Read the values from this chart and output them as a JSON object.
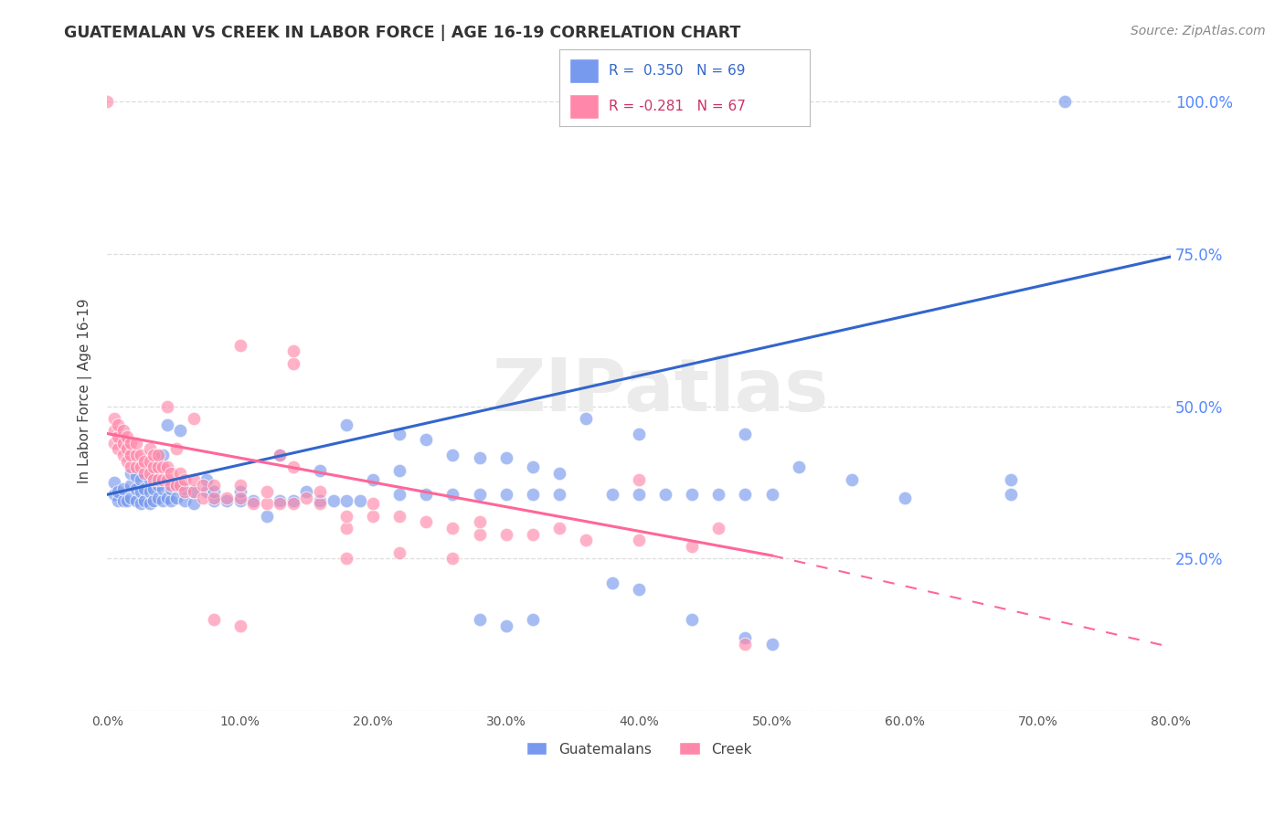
{
  "title": "GUATEMALAN VS CREEK IN LABOR FORCE | AGE 16-19 CORRELATION CHART",
  "source": "Source: ZipAtlas.com",
  "ylabel": "In Labor Force | Age 16-19",
  "xmin": 0.0,
  "xmax": 0.8,
  "ymin": 0.0,
  "ymax": 1.05,
  "ytick_vals": [
    0.0,
    0.25,
    0.5,
    0.75,
    1.0
  ],
  "ytick_labels": [
    "",
    "25.0%",
    "50.0%",
    "75.0%",
    "100.0%"
  ],
  "xtick_vals": [
    0.0,
    0.1,
    0.2,
    0.3,
    0.4,
    0.5,
    0.6,
    0.7,
    0.8
  ],
  "xtick_labels": [
    "0.0%",
    "10.0%",
    "20.0%",
    "30.0%",
    "40.0%",
    "50.0%",
    "60.0%",
    "70.0%",
    "80.0%"
  ],
  "watermark": "ZIPatlas",
  "blue_color": "#7799EE",
  "pink_color": "#FF88AA",
  "blue_line_color": "#3366CC",
  "pink_line_color": "#FF6699",
  "blue_trend": [
    0.0,
    0.8,
    0.355,
    0.745
  ],
  "pink_trend_solid": [
    0.0,
    0.5,
    0.455,
    0.255
  ],
  "pink_trend_dash": [
    0.5,
    0.8,
    0.255,
    0.105
  ],
  "guatemalan_points": [
    [
      0.005,
      0.355
    ],
    [
      0.005,
      0.375
    ],
    [
      0.008,
      0.345
    ],
    [
      0.008,
      0.36
    ],
    [
      0.012,
      0.345
    ],
    [
      0.012,
      0.365
    ],
    [
      0.015,
      0.345
    ],
    [
      0.018,
      0.35
    ],
    [
      0.018,
      0.37
    ],
    [
      0.018,
      0.39
    ],
    [
      0.022,
      0.345
    ],
    [
      0.022,
      0.365
    ],
    [
      0.022,
      0.385
    ],
    [
      0.025,
      0.34
    ],
    [
      0.025,
      0.36
    ],
    [
      0.025,
      0.38
    ],
    [
      0.028,
      0.345
    ],
    [
      0.028,
      0.365
    ],
    [
      0.032,
      0.34
    ],
    [
      0.032,
      0.36
    ],
    [
      0.032,
      0.38
    ],
    [
      0.035,
      0.345
    ],
    [
      0.035,
      0.365
    ],
    [
      0.035,
      0.385
    ],
    [
      0.038,
      0.35
    ],
    [
      0.038,
      0.37
    ],
    [
      0.042,
      0.345
    ],
    [
      0.042,
      0.365
    ],
    [
      0.042,
      0.42
    ],
    [
      0.045,
      0.35
    ],
    [
      0.045,
      0.47
    ],
    [
      0.048,
      0.345
    ],
    [
      0.048,
      0.365
    ],
    [
      0.052,
      0.35
    ],
    [
      0.052,
      0.37
    ],
    [
      0.055,
      0.46
    ],
    [
      0.058,
      0.345
    ],
    [
      0.058,
      0.365
    ],
    [
      0.065,
      0.34
    ],
    [
      0.065,
      0.36
    ],
    [
      0.075,
      0.36
    ],
    [
      0.075,
      0.38
    ],
    [
      0.08,
      0.345
    ],
    [
      0.08,
      0.36
    ],
    [
      0.09,
      0.345
    ],
    [
      0.1,
      0.345
    ],
    [
      0.1,
      0.36
    ],
    [
      0.11,
      0.345
    ],
    [
      0.12,
      0.32
    ],
    [
      0.13,
      0.345
    ],
    [
      0.13,
      0.42
    ],
    [
      0.14,
      0.345
    ],
    [
      0.15,
      0.36
    ],
    [
      0.16,
      0.345
    ],
    [
      0.16,
      0.395
    ],
    [
      0.17,
      0.345
    ],
    [
      0.18,
      0.345
    ],
    [
      0.18,
      0.47
    ],
    [
      0.19,
      0.345
    ],
    [
      0.2,
      0.38
    ],
    [
      0.22,
      0.355
    ],
    [
      0.22,
      0.395
    ],
    [
      0.22,
      0.455
    ],
    [
      0.24,
      0.355
    ],
    [
      0.24,
      0.445
    ],
    [
      0.26,
      0.355
    ],
    [
      0.26,
      0.42
    ],
    [
      0.28,
      0.355
    ],
    [
      0.28,
      0.415
    ],
    [
      0.3,
      0.355
    ],
    [
      0.3,
      0.415
    ],
    [
      0.32,
      0.355
    ],
    [
      0.32,
      0.4
    ],
    [
      0.34,
      0.355
    ],
    [
      0.34,
      0.39
    ],
    [
      0.36,
      0.48
    ],
    [
      0.38,
      0.355
    ],
    [
      0.4,
      0.355
    ],
    [
      0.4,
      0.455
    ],
    [
      0.42,
      0.355
    ],
    [
      0.44,
      0.355
    ],
    [
      0.46,
      0.355
    ],
    [
      0.48,
      0.355
    ],
    [
      0.48,
      0.455
    ],
    [
      0.5,
      0.355
    ],
    [
      0.52,
      0.4
    ],
    [
      0.6,
      0.35
    ],
    [
      0.68,
      0.355
    ],
    [
      0.28,
      0.15
    ],
    [
      0.3,
      0.14
    ],
    [
      0.32,
      0.15
    ],
    [
      0.38,
      0.21
    ],
    [
      0.4,
      0.2
    ],
    [
      0.44,
      0.15
    ],
    [
      0.48,
      0.12
    ],
    [
      0.5,
      0.11
    ],
    [
      0.56,
      0.38
    ],
    [
      0.68,
      0.38
    ],
    [
      0.72,
      1.0
    ]
  ],
  "creek_points": [
    [
      0.005,
      0.44
    ],
    [
      0.005,
      0.46
    ],
    [
      0.005,
      0.48
    ],
    [
      0.008,
      0.43
    ],
    [
      0.008,
      0.45
    ],
    [
      0.008,
      0.47
    ],
    [
      0.012,
      0.42
    ],
    [
      0.012,
      0.44
    ],
    [
      0.012,
      0.46
    ],
    [
      0.015,
      0.41
    ],
    [
      0.015,
      0.43
    ],
    [
      0.015,
      0.45
    ],
    [
      0.018,
      0.4
    ],
    [
      0.018,
      0.42
    ],
    [
      0.018,
      0.44
    ],
    [
      0.022,
      0.4
    ],
    [
      0.022,
      0.42
    ],
    [
      0.022,
      0.44
    ],
    [
      0.025,
      0.4
    ],
    [
      0.025,
      0.42
    ],
    [
      0.028,
      0.39
    ],
    [
      0.028,
      0.41
    ],
    [
      0.032,
      0.39
    ],
    [
      0.032,
      0.41
    ],
    [
      0.032,
      0.43
    ],
    [
      0.035,
      0.38
    ],
    [
      0.035,
      0.4
    ],
    [
      0.035,
      0.42
    ],
    [
      0.038,
      0.38
    ],
    [
      0.038,
      0.4
    ],
    [
      0.038,
      0.42
    ],
    [
      0.042,
      0.38
    ],
    [
      0.042,
      0.4
    ],
    [
      0.045,
      0.38
    ],
    [
      0.045,
      0.4
    ],
    [
      0.045,
      0.5
    ],
    [
      0.048,
      0.37
    ],
    [
      0.048,
      0.39
    ],
    [
      0.052,
      0.37
    ],
    [
      0.052,
      0.43
    ],
    [
      0.055,
      0.37
    ],
    [
      0.055,
      0.39
    ],
    [
      0.058,
      0.36
    ],
    [
      0.058,
      0.38
    ],
    [
      0.065,
      0.36
    ],
    [
      0.065,
      0.38
    ],
    [
      0.065,
      0.48
    ],
    [
      0.072,
      0.35
    ],
    [
      0.072,
      0.37
    ],
    [
      0.08,
      0.35
    ],
    [
      0.08,
      0.37
    ],
    [
      0.09,
      0.35
    ],
    [
      0.1,
      0.35
    ],
    [
      0.1,
      0.37
    ],
    [
      0.11,
      0.34
    ],
    [
      0.12,
      0.34
    ],
    [
      0.12,
      0.36
    ],
    [
      0.13,
      0.34
    ],
    [
      0.13,
      0.42
    ],
    [
      0.14,
      0.34
    ],
    [
      0.14,
      0.4
    ],
    [
      0.15,
      0.35
    ],
    [
      0.16,
      0.34
    ],
    [
      0.16,
      0.36
    ],
    [
      0.18,
      0.3
    ],
    [
      0.18,
      0.32
    ],
    [
      0.2,
      0.32
    ],
    [
      0.2,
      0.34
    ],
    [
      0.22,
      0.32
    ],
    [
      0.24,
      0.31
    ],
    [
      0.26,
      0.3
    ],
    [
      0.28,
      0.29
    ],
    [
      0.28,
      0.31
    ],
    [
      0.3,
      0.29
    ],
    [
      0.32,
      0.29
    ],
    [
      0.34,
      0.3
    ],
    [
      0.36,
      0.28
    ],
    [
      0.4,
      0.28
    ],
    [
      0.4,
      0.38
    ],
    [
      0.44,
      0.27
    ],
    [
      0.46,
      0.3
    ],
    [
      0.48,
      0.11
    ],
    [
      0.1,
      0.6
    ],
    [
      0.14,
      0.57
    ],
    [
      0.14,
      0.59
    ],
    [
      0.08,
      0.15
    ],
    [
      0.1,
      0.14
    ],
    [
      0.18,
      0.25
    ],
    [
      0.22,
      0.26
    ],
    [
      0.26,
      0.25
    ],
    [
      0.0,
      1.0
    ]
  ]
}
